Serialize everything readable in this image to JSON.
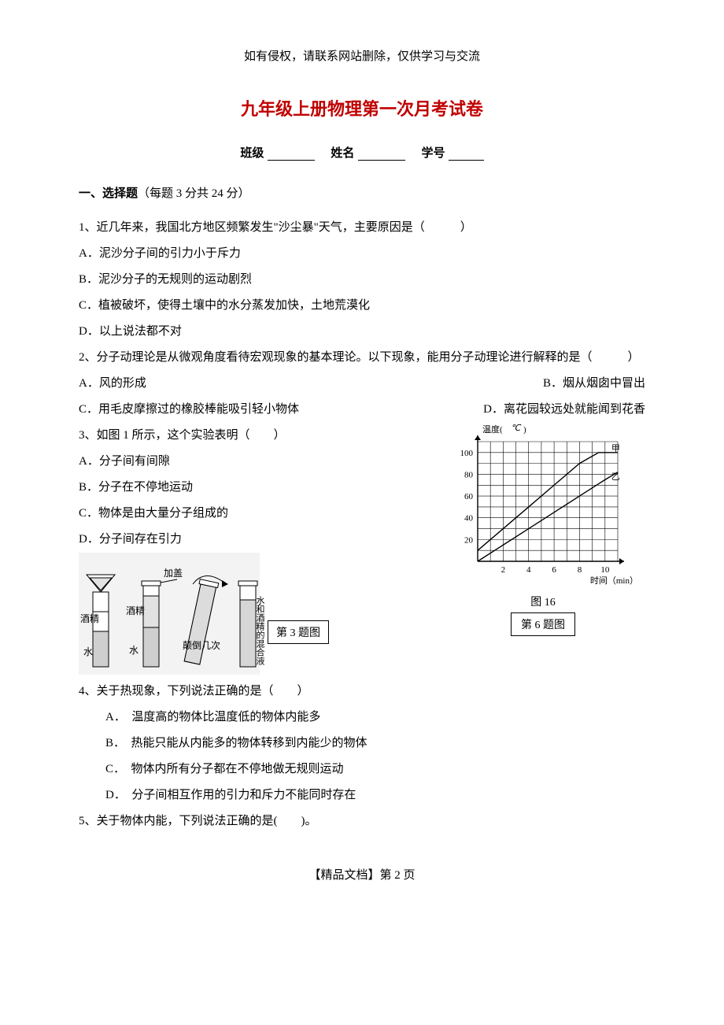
{
  "header_note": "如有侵权，请联系网站删除，仅供学习与交流",
  "title": "九年级上册物理第一次月考试卷",
  "info": {
    "class_label": "班级",
    "name_label": "姓名",
    "id_label": "学号"
  },
  "section1": {
    "heading_bold": "一、选择题",
    "heading_rest": "（每题 3 分共 24 分）"
  },
  "q1": {
    "stem": "1、近几年来，我国北方地区频繁发生\"沙尘暴\"天气，主要原因是（　　　）",
    "A": "A．泥沙分子间的引力小于斥力",
    "B": "B．泥沙分子的无规则的运动剧烈",
    "C": "C．植被破坏，使得土壤中的水分蒸发加快，土地荒漠化",
    "D": "D．以上说法都不对"
  },
  "q2": {
    "stem": "2、分子动理论是从微观角度看待宏观现象的基本理论。以下现象，能用分子动理论进行解释的是（　　　）",
    "A": "A．风的形成",
    "B": "B．烟从烟囱中冒出",
    "C": "C．用毛皮摩擦过的橡胶棒能吸引轻小物体",
    "D": "D．离花园较远处就能闻到花香"
  },
  "q3": {
    "stem": "3、如图 1 所示，这个实验表明（　　）",
    "A": "A．分子间有间隙",
    "B": "B．分子在不停地运动",
    "C": "C．物体是由大量分子组成的",
    "D": "D．分子间存在引力"
  },
  "q4": {
    "stem": "4、关于热现象，下列说法正确的是（　　）",
    "A": "A．　温度高的物体比温度低的物体内能多",
    "B": "B．　热能只能从内能多的物体转移到内能少的物体",
    "C": "C．　物体内所有分子都在不停地做无规则运动",
    "D": "D．　分子间相互作用的引力和斥力不能同时存在"
  },
  "q5": {
    "stem": "5、关于物体内能，下列说法正确的是(　　)。"
  },
  "fig3": {
    "caption": "第 3 题图",
    "labels": {
      "jiujing": "酒精",
      "shui": "水",
      "jiagai": "加盖",
      "diandao": "颠倒几次",
      "mix": "水和酒精的混合液"
    },
    "colors": {
      "tube_outline": "#000000",
      "liquid_fill": "#cccccc",
      "bg_dots": "#e8e8e8"
    }
  },
  "fig6": {
    "caption": "第 6 题图",
    "sublabel": "图 16",
    "type": "line",
    "axis": {
      "ylabel": "温度(",
      "yunit": "℃",
      "ylabel_close": ")",
      "xlabel": "时间（min）",
      "xlim": [
        0,
        11
      ],
      "ylim": [
        0,
        110
      ],
      "xticks": [
        2,
        4,
        6,
        8,
        10
      ],
      "yticks": [
        20,
        40,
        60,
        80,
        100
      ]
    },
    "series": {
      "jia": {
        "label": "甲",
        "points": [
          [
            0,
            10
          ],
          [
            2,
            30
          ],
          [
            4,
            50
          ],
          [
            6,
            70
          ],
          [
            8,
            90
          ],
          [
            9.5,
            100
          ],
          [
            11,
            100
          ]
        ],
        "color": "#000000",
        "width": 1.4
      },
      "yi": {
        "label": "乙",
        "points": [
          [
            0,
            0
          ],
          [
            2,
            15
          ],
          [
            4,
            30
          ],
          [
            6,
            45
          ],
          [
            8,
            60
          ],
          [
            10,
            75
          ],
          [
            11,
            82
          ]
        ],
        "color": "#000000",
        "width": 1.4
      }
    },
    "grid_color": "#000000",
    "background": "#ffffff",
    "font_size": 11
  },
  "footer": "【精品文档】第  2  页"
}
